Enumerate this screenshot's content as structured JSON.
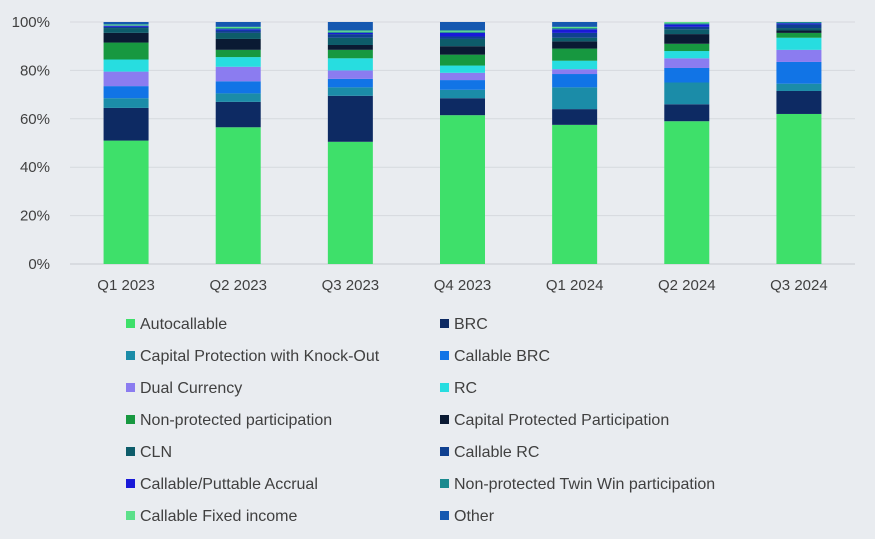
{
  "chart_data": {
    "type": "bar",
    "stacked": true,
    "normalized": true,
    "title": "",
    "xlabel": "",
    "ylabel": "",
    "ylim": [
      0,
      100
    ],
    "yticks": [
      "0%",
      "20%",
      "40%",
      "60%",
      "80%",
      "100%"
    ],
    "grid": true,
    "legend_position": "bottom",
    "categories": [
      "Q1 2023",
      "Q2 2023",
      "Q3 2023",
      "Q4 2023",
      "Q1 2024",
      "Q2 2024",
      "Q3 2024"
    ],
    "series": [
      {
        "name": "Autocallable",
        "color": "#3EE06A",
        "values": [
          51,
          56.5,
          50.5,
          61.5,
          57.5,
          59,
          62
        ]
      },
      {
        "name": "BRC",
        "color": "#0D2A63",
        "values": [
          13.5,
          10.5,
          19,
          7,
          6.5,
          7,
          9.5
        ]
      },
      {
        "name": "Capital Protection with Knock-Out",
        "color": "#1B8CA8",
        "values": [
          4,
          3.5,
          3.5,
          3.5,
          9,
          9,
          3
        ]
      },
      {
        "name": "Callable BRC",
        "color": "#1174E6",
        "values": [
          5,
          5,
          3.5,
          4,
          5.5,
          6,
          9
        ]
      },
      {
        "name": "Dual Currency",
        "color": "#8B7CF0",
        "values": [
          6,
          6,
          3.5,
          3,
          2,
          4,
          5
        ]
      },
      {
        "name": "RC",
        "color": "#27DDE0",
        "values": [
          5,
          4,
          5,
          3,
          3.5,
          3,
          5
        ]
      },
      {
        "name": "Non-protected participation",
        "color": "#179840",
        "values": [
          7,
          3,
          3.5,
          4.5,
          5,
          3,
          2
        ]
      },
      {
        "name": "Capital Protected Participation",
        "color": "#0A1A33",
        "values": [
          4,
          4.5,
          2,
          3.5,
          3,
          4,
          1
        ]
      },
      {
        "name": "CLN",
        "color": "#0D5C6A",
        "values": [
          2,
          2.5,
          3,
          3,
          1.5,
          2,
          1
        ]
      },
      {
        "name": "Callable RC",
        "color": "#0F4090",
        "values": [
          0.5,
          1,
          1.5,
          1,
          2,
          1,
          1.5
        ]
      },
      {
        "name": "Callable/Puttable Accrual",
        "color": "#1919D8",
        "values": [
          0.5,
          0.5,
          0.5,
          1.5,
          1.5,
          1,
          0.5
        ]
      },
      {
        "name": "Non-protected Twin Win participation",
        "color": "#1A8A8F",
        "values": [
          0,
          0.5,
          0.5,
          0.5,
          0.5,
          0.5,
          0.5
        ]
      },
      {
        "name": "Callable Fixed income",
        "color": "#5CE08A",
        "values": [
          0.5,
          0.5,
          0.5,
          0.5,
          0.5,
          0.5,
          0
        ]
      },
      {
        "name": "Other",
        "color": "#1558B0",
        "values": [
          1,
          2,
          3.5,
          3.5,
          2,
          0,
          0
        ]
      }
    ]
  }
}
